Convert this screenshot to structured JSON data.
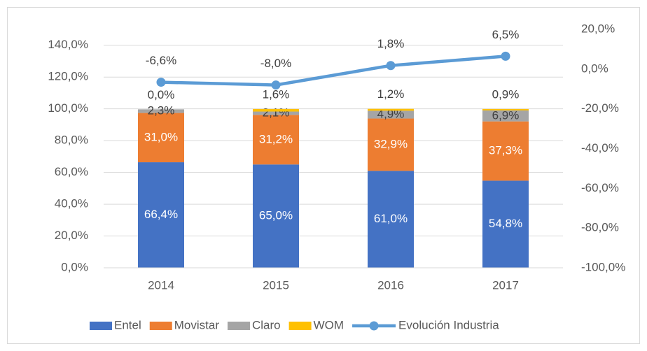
{
  "chart_data": {
    "type": "bar",
    "stacked": true,
    "categories": [
      "2014",
      "2015",
      "2016",
      "2017"
    ],
    "series": [
      {
        "name": "Entel",
        "color": "#4472c4",
        "values": [
          66.4,
          65.0,
          61.0,
          54.8
        ],
        "value_labels": [
          "66,4%",
          "65,0%",
          "61,0%",
          "54,8%"
        ]
      },
      {
        "name": "Movistar",
        "color": "#ed7d31",
        "values": [
          31.0,
          31.2,
          32.9,
          37.3
        ],
        "value_labels": [
          "31,0%",
          "31,2%",
          "32,9%",
          "37,3%"
        ]
      },
      {
        "name": "Claro",
        "color": "#a5a5a5",
        "values": [
          2.3,
          2.1,
          4.9,
          6.9
        ],
        "value_labels": [
          "2,3%",
          "2,1%",
          "4,9%",
          "6,9%"
        ]
      },
      {
        "name": "WOM",
        "color": "#ffc000",
        "values": [
          0.0,
          1.6,
          1.2,
          0.9
        ],
        "value_labels": [
          "0,0%",
          "1,6%",
          "1,2%",
          "0,9%"
        ]
      },
      {
        "name": "Evolución Industria",
        "type": "line",
        "axis": "y2",
        "color": "#5b9bd5",
        "values": [
          -6.6,
          -8.0,
          1.8,
          6.5
        ],
        "value_labels": [
          "-6,6%",
          "-8,0%",
          "1,8%",
          "6,5%"
        ]
      }
    ],
    "ylim": [
      0,
      150
    ],
    "yticks": [
      {
        "value": 0,
        "label": "0,0%"
      },
      {
        "value": 20,
        "label": "20,0%"
      },
      {
        "value": 40,
        "label": "40,0%"
      },
      {
        "value": 60,
        "label": "60,0%"
      },
      {
        "value": 80,
        "label": "80,0%"
      },
      {
        "value": 100,
        "label": "100,0%"
      },
      {
        "value": 120,
        "label": "120,0%"
      },
      {
        "value": 140,
        "label": "140,0%"
      }
    ],
    "y2lim": [
      -100,
      20
    ],
    "y2ticks": [
      {
        "value": -100,
        "label": "-100,0%"
      },
      {
        "value": -80,
        "label": "-80,0%"
      },
      {
        "value": -60,
        "label": "-60,0%"
      },
      {
        "value": -40,
        "label": "-40,0%"
      },
      {
        "value": -20,
        "label": "-20,0%"
      },
      {
        "value": 0,
        "label": "0,0%"
      },
      {
        "value": 20,
        "label": "20,0%"
      }
    ],
    "grid": true,
    "legend": "bottom"
  }
}
